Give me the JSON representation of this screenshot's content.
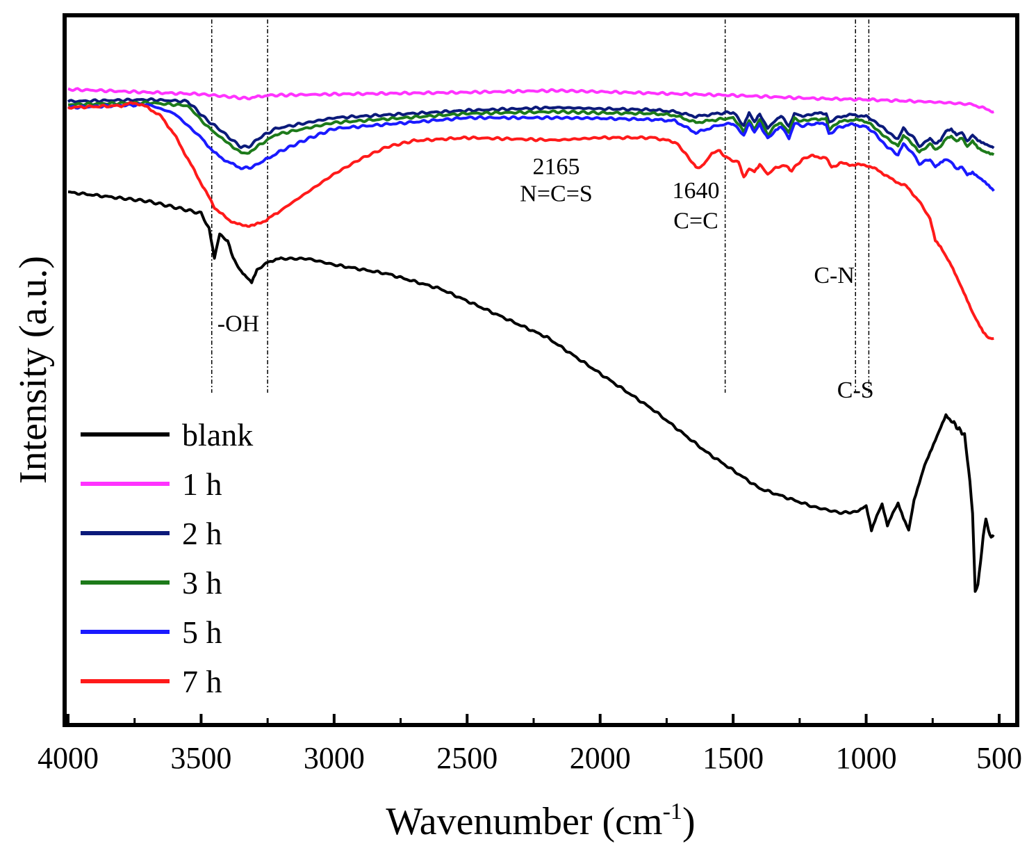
{
  "chart_data": {
    "type": "line",
    "title": "",
    "xlabel": "Wavenumber (cm",
    "xlabel_sup": "-1",
    "xlabel_end": ")",
    "ylabel": "Intensity (a.u.)",
    "xlim": [
      4000,
      400
    ],
    "ylim": [
      0,
      100
    ],
    "x_ticks": [
      4000,
      3500,
      3000,
      2500,
      2000,
      1500,
      1000,
      500
    ],
    "x_tick_labels": [
      "4000",
      "3500",
      "3000",
      "2500",
      "2000",
      "1500",
      "1000",
      "500"
    ],
    "grid": false,
    "legend_position": "bottom-left",
    "series": [
      {
        "name": "blank",
        "color": "#000000",
        "x": [
          4000,
          3800,
          3700,
          3600,
          3500,
          3470,
          3450,
          3430,
          3400,
          3380,
          3350,
          3330,
          3310,
          3290,
          3250,
          3200,
          3100,
          3000,
          2800,
          2600,
          2400,
          2200,
          2000,
          1800,
          1600,
          1400,
          1200,
          1100,
          1060,
          1020,
          1000,
          980,
          960,
          940,
          920,
          900,
          880,
          860,
          840,
          820,
          800,
          780,
          760,
          740,
          720,
          700,
          680,
          670,
          660,
          650,
          640,
          630,
          620,
          610,
          600,
          590,
          580,
          570,
          560,
          550,
          540,
          530,
          520
        ],
        "y": [
          78,
          77,
          76.5,
          75.5,
          74.5,
          72,
          67,
          71,
          70,
          67,
          65,
          64,
          63,
          65,
          66.5,
          67,
          67,
          66,
          64.5,
          62,
          58,
          54,
          48,
          42,
          35,
          29,
          26,
          25,
          25,
          25.5,
          26,
          22,
          24.5,
          26.5,
          23,
          25,
          26.5,
          24,
          22,
          27,
          30,
          33,
          35,
          37,
          39,
          41,
          40,
          40,
          39,
          39,
          38,
          38,
          34,
          30,
          25,
          12,
          13,
          17,
          21,
          24,
          22,
          21,
          21
        ]
      },
      {
        "name": "1 h",
        "color": "#ff33ff",
        "x": [
          4000,
          3700,
          3500,
          3400,
          3330,
          3250,
          3000,
          2500,
          2165,
          2000,
          1500,
          1200,
          1000,
          800,
          700,
          600,
          520
        ],
        "y": [
          95,
          94.5,
          94.2,
          93.8,
          93.5,
          94,
          94.2,
          94.5,
          94.8,
          94.6,
          94,
          93.5,
          93.3,
          93,
          92.8,
          92.5,
          91.3
        ]
      },
      {
        "name": "2 h",
        "color": "#0b1a7a",
        "x": [
          4000,
          3700,
          3550,
          3480,
          3420,
          3380,
          3350,
          3320,
          3280,
          3220,
          3100,
          3000,
          2500,
          2165,
          2000,
          1800,
          1720,
          1640,
          1560,
          1500,
          1460,
          1440,
          1420,
          1400,
          1370,
          1340,
          1320,
          1290,
          1270,
          1240,
          1200,
          1150,
          1140,
          1100,
          1050,
          1000,
          960,
          920,
          880,
          860,
          820,
          800,
          760,
          740,
          720,
          700,
          680,
          660,
          640,
          620,
          600,
          580,
          560,
          540,
          520
        ],
        "y": [
          93,
          93.3,
          93,
          90,
          88,
          86.5,
          85.5,
          85.5,
          87,
          88.5,
          89.5,
          90.3,
          91.5,
          92,
          91.8,
          91.6,
          91.3,
          90.5,
          91,
          91.2,
          89,
          91,
          89.5,
          91,
          88.5,
          90,
          90.5,
          89,
          91,
          90.5,
          91,
          91,
          89.5,
          90.5,
          90.8,
          90.5,
          89.5,
          88,
          86.8,
          88.5,
          87,
          85.5,
          87,
          86,
          86.5,
          88,
          88.3,
          87.5,
          88,
          86.5,
          87.5,
          86.5,
          86,
          85.6,
          85.3
        ]
      },
      {
        "name": "3 h",
        "color": "#1d7a1a",
        "x": [
          4000,
          3700,
          3550,
          3480,
          3420,
          3380,
          3350,
          3320,
          3280,
          3220,
          3100,
          3000,
          2500,
          2165,
          2000,
          1800,
          1720,
          1640,
          1560,
          1500,
          1460,
          1440,
          1420,
          1400,
          1370,
          1340,
          1320,
          1290,
          1270,
          1240,
          1200,
          1150,
          1140,
          1100,
          1050,
          1000,
          960,
          920,
          880,
          860,
          820,
          800,
          760,
          740,
          720,
          700,
          680,
          660,
          640,
          620,
          600,
          580,
          560,
          540,
          520
        ],
        "y": [
          92.5,
          92.8,
          92.3,
          89,
          86.8,
          85.5,
          84.5,
          84.5,
          85.8,
          87.5,
          88.6,
          89.5,
          91,
          91.3,
          91.1,
          91,
          90.7,
          89.5,
          90,
          90.3,
          88,
          90,
          88.5,
          90,
          87.5,
          89,
          89.5,
          87.8,
          90.2,
          89.7,
          90.1,
          90.1,
          88.4,
          89.6,
          90,
          89.7,
          88.4,
          86.8,
          85.7,
          87.4,
          85.8,
          84.5,
          86,
          85,
          85.6,
          87,
          87.3,
          86.4,
          86.9,
          85.4,
          86.4,
          85.4,
          84.9,
          84.6,
          84.2
        ]
      },
      {
        "name": "5 h",
        "color": "#1a1aff",
        "x": [
          4000,
          3700,
          3600,
          3500,
          3450,
          3400,
          3350,
          3320,
          3280,
          3200,
          3100,
          3000,
          2500,
          2165,
          2000,
          1800,
          1720,
          1640,
          1560,
          1500,
          1460,
          1440,
          1420,
          1400,
          1370,
          1340,
          1320,
          1290,
          1270,
          1240,
          1200,
          1150,
          1140,
          1100,
          1050,
          1000,
          960,
          920,
          880,
          860,
          820,
          800,
          760,
          740,
          720,
          700,
          680,
          660,
          640,
          620,
          600,
          580,
          560,
          540,
          520
        ],
        "y": [
          92,
          92.5,
          91,
          87,
          84.5,
          83,
          82,
          82,
          82.8,
          84.8,
          86.8,
          88.5,
          90.3,
          90.3,
          90.2,
          90,
          89.8,
          87.8,
          89,
          89.4,
          87.3,
          89.3,
          87.8,
          89.3,
          86.8,
          88.3,
          88.8,
          87,
          89.4,
          88.9,
          89.3,
          89.3,
          87.6,
          88.8,
          89.2,
          88.8,
          87.4,
          85.4,
          84.2,
          85.9,
          84.2,
          82.6,
          83.5,
          82.2,
          82.8,
          83.3,
          82.9,
          81.8,
          82.3,
          81,
          81.3,
          80.5,
          79.8,
          79,
          78.2
        ]
      },
      {
        "name": "7 h",
        "color": "#ff1a1a",
        "x": [
          4000,
          3800,
          3750,
          3700,
          3650,
          3600,
          3550,
          3500,
          3450,
          3400,
          3350,
          3300,
          3250,
          3200,
          3100,
          3000,
          2900,
          2800,
          2700,
          2500,
          2165,
          2000,
          1800,
          1720,
          1680,
          1640,
          1610,
          1580,
          1550,
          1520,
          1480,
          1460,
          1440,
          1420,
          1400,
          1370,
          1340,
          1300,
          1280,
          1240,
          1200,
          1150,
          1130,
          1100,
          1050,
          1000,
          950,
          900,
          850,
          800,
          760,
          740,
          720,
          700,
          680,
          660,
          640,
          620,
          600,
          580,
          560,
          540,
          520
        ],
        "y": [
          92,
          92.3,
          92.8,
          92,
          90.5,
          87.5,
          83.5,
          79.5,
          75.5,
          73.5,
          72.5,
          72.5,
          73.5,
          75,
          78,
          81,
          83.5,
          85.5,
          86.5,
          87,
          86.6,
          87,
          87,
          86.3,
          84.5,
          82,
          82.5,
          84.5,
          84.8,
          83.5,
          83,
          80.5,
          82,
          81.5,
          82.5,
          81,
          82,
          82.5,
          81.5,
          83.5,
          84,
          83.6,
          82,
          82.8,
          82.5,
          82.5,
          81.5,
          80,
          79,
          76.5,
          73.5,
          70,
          69,
          67.5,
          66,
          64,
          62,
          60,
          58,
          56.5,
          55,
          54,
          53.8
        ]
      }
    ],
    "annotations": [
      {
        "text": "-OH",
        "x": 3360,
        "y": 55
      },
      {
        "text": "2165",
        "x": 2165,
        "y": 81
      },
      {
        "text": "N=C=S",
        "x": 2165,
        "y": 76.5
      },
      {
        "text": "1640",
        "x": 1640,
        "y": 77
      },
      {
        "text": "C=C",
        "x": 1640,
        "y": 72
      },
      {
        "text": "C-N",
        "x": 1120,
        "y": 63
      },
      {
        "text": "C-S",
        "x": 1040,
        "y": 44
      }
    ],
    "reference_lines_x": [
      3460,
      3250,
      1530,
      1040,
      990
    ]
  }
}
